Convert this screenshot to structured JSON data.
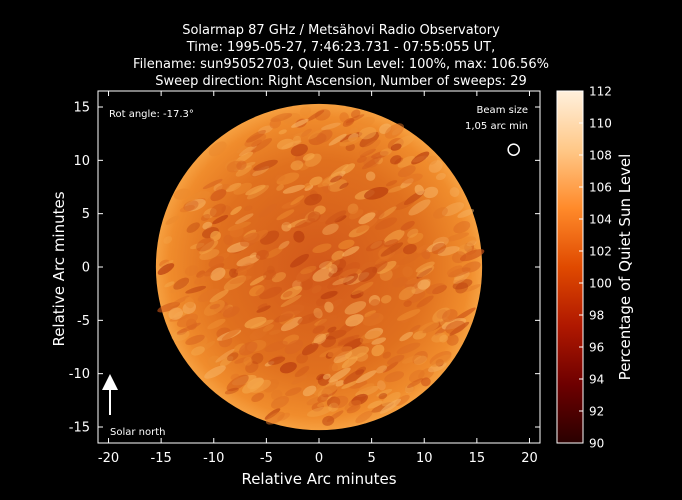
{
  "chart_data": {
    "type": "heatmap",
    "title_lines": [
      "Solarmap 87 GHz / Metsähovi Radio Observatory",
      "Time: 1995-05-27,  7:46:23.731 - 07:55:055 UT,",
      "Filename: sun95052703, Quiet Sun Level: 100%, max: 106.56%",
      "Sweep direction: Right Ascension, Number of sweeps: 29"
    ],
    "xlabel": "Relative Arc minutes",
    "ylabel": "Relative Arc minutes",
    "xlim": [
      -21,
      21
    ],
    "ylim": [
      -16.5,
      16.5
    ],
    "x_ticks": [
      -20,
      -15,
      -10,
      -5,
      0,
      5,
      10,
      15,
      20
    ],
    "y_ticks": [
      15,
      10,
      5,
      0,
      -5,
      -10,
      -15
    ],
    "x_tick_labels": [
      "-20",
      "-15",
      "-10",
      "-5",
      "0",
      "5",
      "10",
      "15",
      "20"
    ],
    "y_tick_labels": [
      "15",
      "10",
      "5",
      "0",
      "-5",
      "-10",
      "-15"
    ],
    "disk": {
      "center": [
        0,
        0
      ],
      "radius_arcmin": 15.5
    },
    "colorbar": {
      "label": "Percentage of Quiet Sun Level",
      "range": [
        90,
        112
      ],
      "ticks": [
        112,
        110,
        108,
        106,
        104,
        102,
        100,
        98,
        96,
        94,
        92,
        90
      ],
      "tick_labels": [
        "112",
        "110",
        "108",
        "106",
        "104",
        "102",
        "100",
        "98",
        "96",
        "94",
        "92",
        "90"
      ],
      "colors": [
        "#2a0000",
        "#6e0000",
        "#b01800",
        "#e04a00",
        "#ff8a2a",
        "#ffc888",
        "#fff0dc"
      ]
    },
    "annotations": {
      "rot_angle": "Rot angle: -17.3°",
      "beam_size_title": "Beam size",
      "beam_size_value": "1,05 arc min",
      "solar_north": "Solar north"
    },
    "beam_position": [
      18.5,
      11
    ],
    "beam_size_arcmin": 1.05
  }
}
